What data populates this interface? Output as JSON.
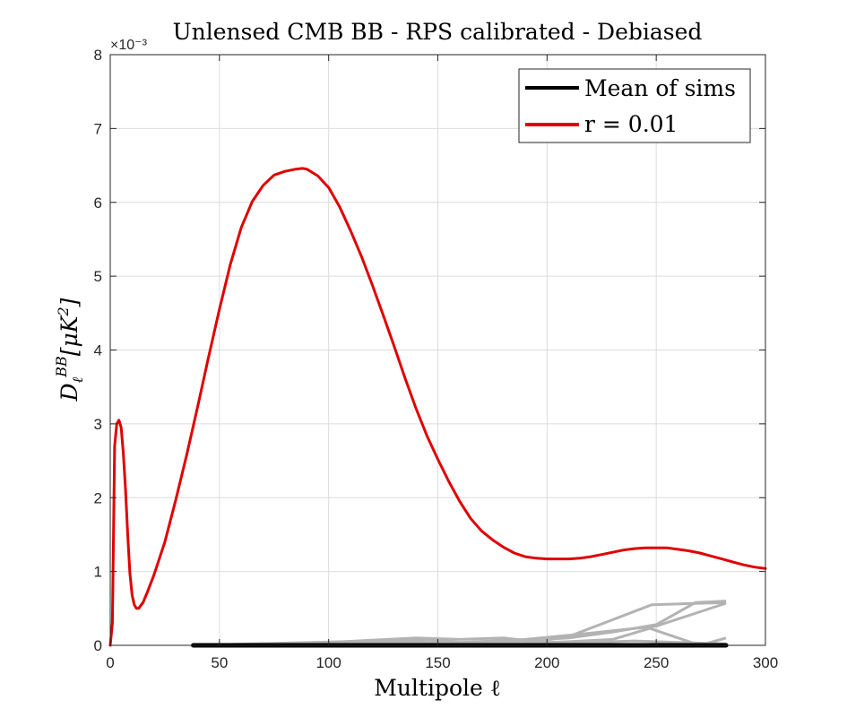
{
  "chart_data": {
    "type": "line",
    "title": "Unlensed CMB BB - RPS calibrated - Debiased",
    "xlabel": "Multipole ℓ",
    "ylabel": "D_ℓ^{BB} [μK²]",
    "ylabel_parts": {
      "main": "D",
      "sub": "ℓ",
      "sup": "BB",
      "unit": "[μK",
      "unit_sup": "2",
      "unit_close": "]"
    },
    "xlim": [
      0,
      300
    ],
    "ylim": [
      0,
      0.008
    ],
    "y_exponent_label": "×10⁻³",
    "x_ticks": [
      "0",
      "50",
      "100",
      "150",
      "200",
      "250",
      "300"
    ],
    "x_tick_values": [
      0,
      50,
      100,
      150,
      200,
      250,
      300
    ],
    "y_ticks": [
      "0",
      "1",
      "2",
      "3",
      "4",
      "5",
      "6",
      "7",
      "8"
    ],
    "y_tick_values": [
      0,
      0.001,
      0.002,
      0.003,
      0.004,
      0.005,
      0.006,
      0.007,
      0.008
    ],
    "grid": true,
    "legend_position": "top-right",
    "legend": [
      {
        "label": "Mean of sims",
        "color": "#000000"
      },
      {
        "label": "r = 0.01",
        "color": "#e00000"
      }
    ],
    "series": [
      {
        "name": "r = 0.01",
        "color": "#e00000",
        "x": [
          0,
          1,
          2,
          3,
          4,
          5,
          6,
          7,
          8,
          9,
          10,
          11,
          12,
          13,
          15,
          17,
          20,
          25,
          30,
          35,
          40,
          45,
          50,
          55,
          60,
          65,
          70,
          75,
          80,
          85,
          88,
          90,
          95,
          100,
          105,
          110,
          115,
          120,
          125,
          130,
          135,
          140,
          145,
          150,
          155,
          160,
          165,
          170,
          175,
          180,
          185,
          190,
          195,
          200,
          205,
          210,
          215,
          220,
          225,
          230,
          235,
          240,
          245,
          250,
          255,
          260,
          265,
          270,
          275,
          280,
          285,
          290,
          295,
          300
        ],
        "y": [
          0,
          0.0003,
          0.0027,
          0.003,
          0.00305,
          0.00295,
          0.0026,
          0.0021,
          0.0015,
          0.00098,
          0.00068,
          0.00055,
          0.0005,
          0.0005,
          0.00058,
          0.00072,
          0.00095,
          0.0014,
          0.00197,
          0.00258,
          0.00323,
          0.0039,
          0.00455,
          0.00516,
          0.00566,
          0.00601,
          0.00623,
          0.00637,
          0.00642,
          0.00645,
          0.00646,
          0.00645,
          0.00636,
          0.0062,
          0.00594,
          0.00562,
          0.00527,
          0.00488,
          0.00447,
          0.00405,
          0.00362,
          0.00321,
          0.00284,
          0.00252,
          0.00222,
          0.00195,
          0.00172,
          0.00155,
          0.00143,
          0.00133,
          0.00125,
          0.0012,
          0.00118,
          0.00117,
          0.00117,
          0.00117,
          0.00118,
          0.0012,
          0.00123,
          0.00126,
          0.00129,
          0.00131,
          0.00132,
          0.00132,
          0.00132,
          0.0013,
          0.00128,
          0.00125,
          0.00121,
          0.00117,
          0.00113,
          0.00109,
          0.00106,
          0.00104
        ]
      },
      {
        "name": "Mean of sims",
        "color": "#000000",
        "x": [
          38,
          60,
          80,
          100,
          120,
          140,
          160,
          180,
          200,
          220,
          240,
          260,
          282
        ],
        "y": [
          0,
          0,
          0,
          0,
          0,
          0,
          0,
          0,
          0,
          0,
          0,
          0,
          0
        ]
      }
    ],
    "sims": {
      "color": "#b3b3b3",
      "lines": [
        {
          "x": [
            38,
            70,
            100,
            140,
            160,
            180,
            195,
            210,
            248,
            282
          ],
          "y": [
            0,
            2e-05,
            4e-05,
            0.0001,
            8e-05,
            0.0001,
            5e-05,
            0.00012,
            0.00055,
            0.00058
          ]
        },
        {
          "x": [
            38,
            80,
            120,
            145,
            160,
            175,
            190,
            215,
            250,
            282
          ],
          "y": [
            0,
            3e-05,
            6e-05,
            8e-05,
            4e-05,
            6e-05,
            8e-05,
            0.00015,
            0.00026,
            0.00057
          ]
        },
        {
          "x": [
            38,
            90,
            130,
            160,
            185,
            210,
            230,
            250,
            268,
            282
          ],
          "y": [
            0,
            2e-05,
            5e-05,
            3e-05,
            6e-05,
            0.0001,
            0.00018,
            0.00028,
            0.00058,
            0.0006
          ]
        },
        {
          "x": [
            38,
            100,
            150,
            180,
            210,
            230,
            247,
            270,
            282
          ],
          "y": [
            0,
            2e-05,
            4e-05,
            2e-05,
            5e-05,
            8e-05,
            0.00023,
            0.0,
            0.0001
          ]
        },
        {
          "x": [
            38,
            100,
            150,
            180,
            210,
            240,
            260,
            282
          ],
          "y": [
            0,
            1e-05,
            2e-05,
            1e-05,
            3e-05,
            6e-05,
            4e-05,
            2e-05
          ]
        }
      ]
    }
  }
}
